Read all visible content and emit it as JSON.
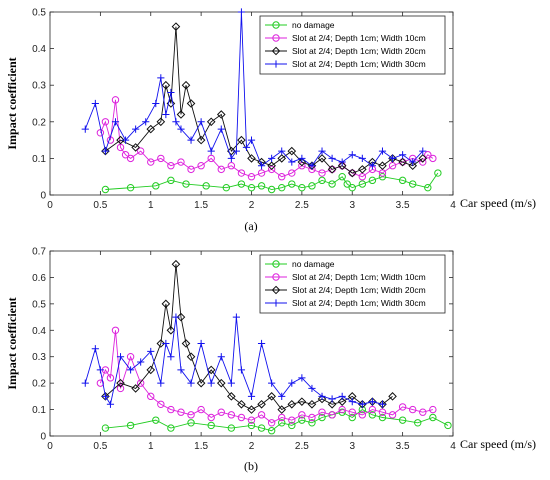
{
  "chart_data": [
    {
      "type": "line",
      "panel_label": "(a)",
      "xlabel": "Car speed (m/s)",
      "ylabel": "Impact coefficient",
      "xlim": [
        0,
        4
      ],
      "ylim": [
        0,
        0.5
      ],
      "x_ticks": [
        "0",
        "0.5",
        "1",
        "1.5",
        "2",
        "2.5",
        "3",
        "3.5",
        "4"
      ],
      "y_ticks": [
        "0",
        "0.1",
        "0.2",
        "0.3",
        "0.4",
        "0.5"
      ],
      "grid": false,
      "legend_position": "top-right",
      "series": [
        {
          "name": "no damage",
          "color": "#22cc22",
          "marker": "circle",
          "x": [
            0.55,
            0.8,
            1.05,
            1.2,
            1.35,
            1.55,
            1.75,
            1.9,
            2.0,
            2.1,
            2.2,
            2.3,
            2.4,
            2.5,
            2.6,
            2.7,
            2.8,
            2.9,
            2.95,
            3.0,
            3.1,
            3.2,
            3.3,
            3.5,
            3.6,
            3.75,
            3.85
          ],
          "y": [
            0.015,
            0.02,
            0.025,
            0.04,
            0.03,
            0.025,
            0.02,
            0.03,
            0.02,
            0.025,
            0.015,
            0.02,
            0.03,
            0.02,
            0.025,
            0.04,
            0.03,
            0.05,
            0.03,
            0.02,
            0.03,
            0.04,
            0.05,
            0.04,
            0.03,
            0.02,
            0.06
          ]
        },
        {
          "name": "Slot at 2/4; Depth 1cm; Width 10cm",
          "color": "#dd22dd",
          "marker": "circle",
          "x": [
            0.5,
            0.55,
            0.6,
            0.65,
            0.7,
            0.75,
            0.8,
            0.9,
            1.0,
            1.1,
            1.2,
            1.3,
            1.4,
            1.5,
            1.6,
            1.7,
            1.8,
            1.9,
            2.0,
            2.1,
            2.2,
            2.3,
            2.4,
            2.5,
            2.6,
            2.7,
            2.8,
            2.9,
            3.0,
            3.1,
            3.2,
            3.3,
            3.4,
            3.5,
            3.6,
            3.7,
            3.75,
            3.8
          ],
          "y": [
            0.17,
            0.2,
            0.15,
            0.26,
            0.13,
            0.11,
            0.1,
            0.12,
            0.09,
            0.1,
            0.08,
            0.09,
            0.07,
            0.08,
            0.1,
            0.07,
            0.08,
            0.06,
            0.05,
            0.06,
            0.07,
            0.05,
            0.06,
            0.08,
            0.07,
            0.06,
            0.07,
            0.08,
            0.06,
            0.05,
            0.07,
            0.06,
            0.08,
            0.09,
            0.1,
            0.09,
            0.11,
            0.1
          ]
        },
        {
          "name": "Slot at 2/4; Depth 1cm; Width 20cm",
          "color": "#111111",
          "marker": "diamond",
          "x": [
            0.55,
            0.7,
            0.85,
            1.0,
            1.1,
            1.15,
            1.2,
            1.25,
            1.3,
            1.35,
            1.4,
            1.5,
            1.6,
            1.7,
            1.8,
            1.9,
            2.0,
            2.1,
            2.2,
            2.3,
            2.4,
            2.5,
            2.6,
            2.7,
            2.8,
            2.9,
            3.0,
            3.1,
            3.2,
            3.3,
            3.4,
            3.5,
            3.6,
            3.7
          ],
          "y": [
            0.12,
            0.15,
            0.13,
            0.18,
            0.2,
            0.3,
            0.25,
            0.46,
            0.22,
            0.3,
            0.25,
            0.15,
            0.2,
            0.22,
            0.12,
            0.15,
            0.1,
            0.09,
            0.08,
            0.1,
            0.12,
            0.09,
            0.08,
            0.1,
            0.07,
            0.08,
            0.06,
            0.07,
            0.09,
            0.08,
            0.1,
            0.09,
            0.08,
            0.1
          ]
        },
        {
          "name": "Slot at 2/4; Depth 1cm; Width 30cm",
          "color": "#1111ee",
          "marker": "plus",
          "x": [
            0.35,
            0.45,
            0.55,
            0.65,
            0.75,
            0.85,
            0.95,
            1.05,
            1.1,
            1.15,
            1.2,
            1.25,
            1.3,
            1.4,
            1.5,
            1.6,
            1.7,
            1.8,
            1.85,
            1.9,
            1.95,
            2.0,
            2.1,
            2.2,
            2.3,
            2.4,
            2.5,
            2.6,
            2.7,
            2.8,
            2.9,
            3.0,
            3.1,
            3.2,
            3.3,
            3.4,
            3.5,
            3.6,
            3.7
          ],
          "y": [
            0.18,
            0.25,
            0.12,
            0.2,
            0.15,
            0.18,
            0.2,
            0.25,
            0.32,
            0.22,
            0.28,
            0.2,
            0.18,
            0.15,
            0.2,
            0.12,
            0.18,
            0.1,
            0.12,
            0.5,
            0.13,
            0.15,
            0.08,
            0.1,
            0.12,
            0.09,
            0.1,
            0.08,
            0.12,
            0.1,
            0.09,
            0.11,
            0.1,
            0.08,
            0.12,
            0.1,
            0.11,
            0.09,
            0.12
          ]
        }
      ]
    },
    {
      "type": "line",
      "panel_label": "(b)",
      "xlabel": "Car speed (m/s)",
      "ylabel": "Impact coefficient",
      "xlim": [
        0,
        4
      ],
      "ylim": [
        0,
        0.7
      ],
      "x_ticks": [
        "0",
        "0.5",
        "1",
        "1.5",
        "2",
        "2.5",
        "3",
        "3.5",
        "4"
      ],
      "y_ticks": [
        "0",
        "0.1",
        "0.2",
        "0.3",
        "0.4",
        "0.5",
        "0.6",
        "0.7"
      ],
      "grid": false,
      "legend_position": "top-right",
      "series": [
        {
          "name": "no damage",
          "color": "#22cc22",
          "marker": "circle",
          "x": [
            0.55,
            0.8,
            1.05,
            1.2,
            1.4,
            1.6,
            1.8,
            2.0,
            2.1,
            2.2,
            2.3,
            2.4,
            2.5,
            2.6,
            2.7,
            2.8,
            2.9,
            3.0,
            3.1,
            3.2,
            3.3,
            3.5,
            3.65,
            3.8,
            3.95
          ],
          "y": [
            0.03,
            0.04,
            0.06,
            0.03,
            0.05,
            0.04,
            0.03,
            0.04,
            0.03,
            0.02,
            0.05,
            0.04,
            0.06,
            0.05,
            0.07,
            0.08,
            0.09,
            0.07,
            0.1,
            0.08,
            0.07,
            0.06,
            0.05,
            0.07,
            0.04
          ]
        },
        {
          "name": "Slot at 2/4; Depth 1cm; Width 10cm",
          "color": "#dd22dd",
          "marker": "circle",
          "x": [
            0.5,
            0.55,
            0.6,
            0.65,
            0.7,
            0.8,
            0.9,
            1.0,
            1.1,
            1.2,
            1.3,
            1.4,
            1.5,
            1.6,
            1.7,
            1.8,
            1.9,
            2.0,
            2.1,
            2.2,
            2.3,
            2.4,
            2.5,
            2.6,
            2.7,
            2.8,
            2.9,
            3.0,
            3.1,
            3.2,
            3.3,
            3.4,
            3.5,
            3.6,
            3.7,
            3.8
          ],
          "y": [
            0.2,
            0.25,
            0.22,
            0.4,
            0.18,
            0.3,
            0.2,
            0.15,
            0.12,
            0.1,
            0.09,
            0.08,
            0.1,
            0.07,
            0.09,
            0.08,
            0.07,
            0.06,
            0.08,
            0.05,
            0.07,
            0.06,
            0.08,
            0.07,
            0.09,
            0.08,
            0.1,
            0.09,
            0.08,
            0.1,
            0.09,
            0.08,
            0.11,
            0.1,
            0.09,
            0.1
          ]
        },
        {
          "name": "Slot at 2/4; Depth 1cm; Width 20cm",
          "color": "#111111",
          "marker": "diamond",
          "x": [
            0.55,
            0.7,
            0.85,
            1.0,
            1.1,
            1.15,
            1.2,
            1.25,
            1.3,
            1.35,
            1.4,
            1.5,
            1.6,
            1.7,
            1.8,
            1.9,
            2.0,
            2.1,
            2.2,
            2.3,
            2.4,
            2.5,
            2.6,
            2.7,
            2.8,
            2.9,
            3.0,
            3.1,
            3.2,
            3.3,
            3.4
          ],
          "y": [
            0.15,
            0.2,
            0.18,
            0.25,
            0.35,
            0.5,
            0.4,
            0.65,
            0.45,
            0.35,
            0.3,
            0.2,
            0.25,
            0.2,
            0.15,
            0.12,
            0.1,
            0.12,
            0.15,
            0.1,
            0.12,
            0.13,
            0.12,
            0.14,
            0.12,
            0.13,
            0.15,
            0.12,
            0.13,
            0.12,
            0.15
          ]
        },
        {
          "name": "Slot at 2/4; Depth 1cm; Width 30cm",
          "color": "#1111ee",
          "marker": "plus",
          "x": [
            0.35,
            0.45,
            0.5,
            0.55,
            0.6,
            0.7,
            0.8,
            0.9,
            1.0,
            1.1,
            1.15,
            1.2,
            1.25,
            1.3,
            1.4,
            1.5,
            1.6,
            1.7,
            1.8,
            1.85,
            1.9,
            2.0,
            2.1,
            2.2,
            2.3,
            2.4,
            2.5,
            2.6,
            2.7,
            2.8,
            2.9,
            3.0,
            3.1,
            3.2,
            3.3
          ],
          "y": [
            0.2,
            0.33,
            0.25,
            0.15,
            0.12,
            0.3,
            0.25,
            0.28,
            0.32,
            0.2,
            0.35,
            0.3,
            0.45,
            0.25,
            0.2,
            0.35,
            0.2,
            0.3,
            0.2,
            0.45,
            0.25,
            0.15,
            0.35,
            0.2,
            0.15,
            0.2,
            0.22,
            0.18,
            0.15,
            0.14,
            0.15,
            0.13,
            0.12,
            0.13,
            0.12
          ]
        }
      ]
    }
  ]
}
